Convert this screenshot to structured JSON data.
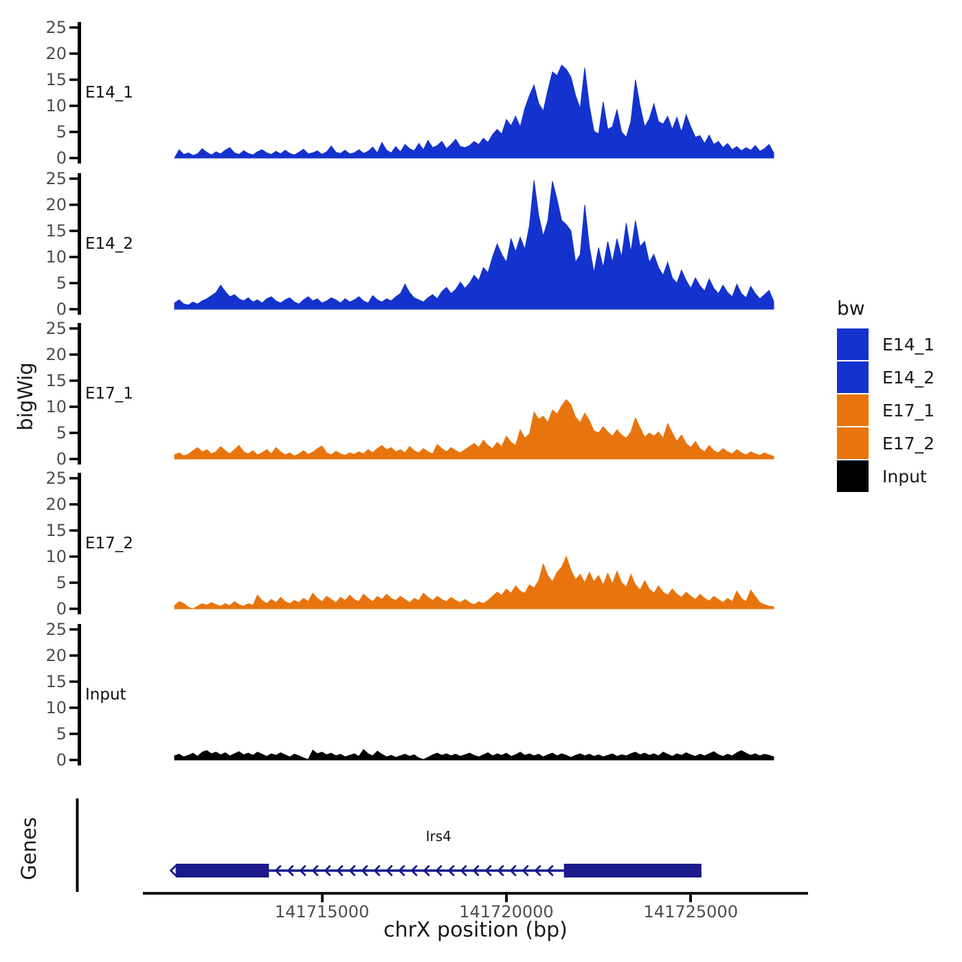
{
  "figure": {
    "ylabel_tracks": "bigWig",
    "ylabel_genes": "Genes",
    "xlabel": "chrX position (bp)",
    "background": "#FFFFFF",
    "axis_color": "#000000",
    "tick_label_color": "#4D4D4D"
  },
  "legend": {
    "title": "bw",
    "items": [
      {
        "label": "E14_1",
        "color": "#1433CE"
      },
      {
        "label": "E14_2",
        "color": "#1433CE"
      },
      {
        "label": "E17_1",
        "color": "#E8740E"
      },
      {
        "label": "E17_2",
        "color": "#E8740E"
      },
      {
        "label": "Input",
        "color": "#000000"
      }
    ]
  },
  "chart_data": {
    "type": "area",
    "title": "",
    "xlabel": "chrX position (bp)",
    "ylabel": "bigWig",
    "legend_title": "bw",
    "legend_position": "right",
    "grid": false,
    "x_domain": [
      141711000,
      141727250
    ],
    "x_step_bp": 125,
    "n_points": 131,
    "x_ticks": [
      141715000,
      141720000,
      141725000
    ],
    "x_tick_labels": [
      "141715000",
      "141720000",
      "141725000"
    ],
    "y_ticks": [
      0,
      5,
      10,
      15,
      20,
      25
    ],
    "ylim": [
      0,
      26.5
    ],
    "series": [
      {
        "name": "E14_1",
        "color": "#1433CE",
        "values": [
          0,
          1.6,
          0.7,
          1.0,
          0.5,
          0.8,
          1.8,
          1.1,
          0.6,
          1.2,
          0.8,
          1.5,
          2.0,
          1.0,
          0.7,
          1.4,
          0.9,
          0.6,
          1.2,
          1.6,
          1.0,
          0.7,
          1.3,
          0.8,
          1.5,
          0.9,
          0.6,
          1.1,
          1.7,
          0.8,
          1.0,
          1.4,
          0.7,
          1.2,
          2.3,
          1.1,
          0.9,
          1.5,
          0.8,
          1.0,
          1.6,
          0.9,
          1.3,
          2.1,
          1.0,
          3.0,
          1.5,
          1.0,
          2.2,
          1.2,
          2.6,
          1.8,
          1.4,
          2.8,
          1.6,
          3.4,
          2.0,
          2.4,
          3.2,
          1.8,
          2.6,
          3.6,
          2.2,
          2.0,
          2.4,
          3.2,
          2.6,
          3.8,
          3.0,
          4.5,
          5.5,
          4.6,
          7.4,
          6.2,
          8.0,
          6.0,
          9.5,
          12.0,
          14.0,
          10.5,
          9.0,
          13.0,
          16.5,
          15.8,
          17.8,
          17.0,
          15.5,
          12.0,
          9.5,
          17.3,
          10.0,
          5.2,
          4.6,
          10.8,
          5.5,
          6.0,
          9.3,
          5.0,
          4.0,
          7.0,
          15.0,
          10.0,
          6.0,
          7.5,
          10.4,
          7.0,
          6.5,
          8.0,
          5.5,
          7.8,
          5.0,
          8.3,
          6.0,
          4.0,
          4.3,
          2.8,
          4.4,
          2.6,
          3.2,
          2.0,
          2.8,
          1.6,
          2.2,
          1.4,
          2.0,
          1.5,
          2.4,
          1.3,
          1.8,
          2.6,
          1.0
        ]
      },
      {
        "name": "E14_2",
        "color": "#1433CE",
        "values": [
          1.2,
          1.8,
          1.0,
          0.8,
          1.4,
          1.0,
          1.6,
          2.0,
          2.6,
          3.2,
          4.6,
          3.4,
          2.4,
          2.8,
          2.0,
          1.6,
          2.2,
          1.4,
          1.8,
          1.2,
          2.0,
          2.4,
          1.6,
          1.2,
          1.8,
          2.2,
          1.4,
          1.0,
          1.8,
          2.4,
          1.6,
          2.0,
          1.2,
          1.6,
          2.2,
          1.8,
          1.2,
          2.0,
          1.4,
          1.8,
          2.4,
          1.6,
          1.2,
          2.6,
          1.8,
          1.4,
          2.0,
          1.6,
          2.4,
          3.0,
          4.8,
          3.2,
          2.2,
          1.8,
          1.4,
          2.2,
          2.8,
          2.0,
          3.4,
          4.2,
          3.0,
          3.8,
          5.2,
          4.0,
          5.0,
          6.5,
          5.5,
          8.0,
          7.0,
          10.0,
          12.5,
          10.5,
          9.0,
          13.5,
          11.0,
          13.8,
          11.5,
          16.0,
          24.7,
          18.0,
          14.0,
          17.0,
          24.5,
          21.0,
          17.0,
          16.2,
          15.0,
          9.0,
          10.5,
          20.0,
          12.0,
          7.0,
          11.8,
          8.0,
          13.0,
          9.0,
          13.5,
          10.0,
          16.5,
          11.0,
          17.0,
          12.0,
          13.0,
          9.0,
          10.5,
          8.0,
          6.5,
          9.0,
          6.0,
          5.0,
          7.5,
          5.5,
          4.0,
          6.0,
          4.5,
          3.5,
          5.8,
          4.0,
          3.0,
          4.6,
          3.2,
          2.4,
          4.8,
          3.0,
          2.2,
          4.4,
          3.0,
          2.0,
          2.8,
          3.6,
          1.5
        ]
      },
      {
        "name": "E17_1",
        "color": "#E8740E",
        "values": [
          0.8,
          1.2,
          0.6,
          0.9,
          1.6,
          2.2,
          1.4,
          1.8,
          1.0,
          1.4,
          2.4,
          1.6,
          1.0,
          1.8,
          2.6,
          1.4,
          1.0,
          1.6,
          0.8,
          1.2,
          1.8,
          1.0,
          2.2,
          1.4,
          0.8,
          1.2,
          0.6,
          1.0,
          1.6,
          0.9,
          1.3,
          2.0,
          2.5,
          1.2,
          0.8,
          1.5,
          1.0,
          0.7,
          1.2,
          0.9,
          1.4,
          1.0,
          1.8,
          1.2,
          2.0,
          2.6,
          1.8,
          2.2,
          1.4,
          1.8,
          1.2,
          2.4,
          1.6,
          1.2,
          2.0,
          1.4,
          1.0,
          2.8,
          2.0,
          1.4,
          2.2,
          1.6,
          1.2,
          1.8,
          2.4,
          3.0,
          2.2,
          3.6,
          2.6,
          2.0,
          3.2,
          2.4,
          4.4,
          3.2,
          2.6,
          5.6,
          4.0,
          4.8,
          9.0,
          7.6,
          8.2,
          7.0,
          9.4,
          8.6,
          10.2,
          11.4,
          10.4,
          8.0,
          7.0,
          8.8,
          7.4,
          5.4,
          5.0,
          6.2,
          5.2,
          4.4,
          5.6,
          4.6,
          4.0,
          5.2,
          7.9,
          6.0,
          4.2,
          5.0,
          4.4,
          5.2,
          4.0,
          6.8,
          5.0,
          3.4,
          4.6,
          3.0,
          2.2,
          3.4,
          2.0,
          1.4,
          2.6,
          1.6,
          1.2,
          2.0,
          1.4,
          1.0,
          1.8,
          1.2,
          0.8,
          1.4,
          1.0,
          0.7,
          1.2,
          0.8,
          0.5
        ]
      },
      {
        "name": "E17_2",
        "color": "#E8740E",
        "values": [
          0.6,
          1.4,
          1.0,
          0.3,
          0.0,
          0.5,
          1.0,
          0.7,
          1.2,
          0.8,
          0.5,
          1.0,
          0.6,
          1.4,
          0.8,
          0.5,
          1.0,
          0.7,
          2.6,
          1.6,
          1.0,
          1.8,
          1.2,
          2.2,
          1.4,
          1.0,
          1.6,
          1.2,
          2.0,
          1.4,
          3.0,
          2.0,
          1.4,
          2.4,
          1.8,
          1.2,
          2.2,
          1.6,
          2.6,
          1.8,
          1.4,
          2.8,
          2.0,
          1.4,
          2.4,
          1.8,
          2.8,
          2.0,
          1.6,
          2.4,
          1.8,
          1.2,
          2.0,
          1.6,
          3.0,
          2.2,
          1.6,
          2.4,
          1.8,
          1.4,
          2.2,
          1.6,
          1.2,
          1.8,
          1.2,
          0.8,
          1.4,
          1.0,
          1.6,
          2.4,
          3.2,
          2.6,
          3.8,
          3.0,
          4.4,
          3.4,
          3.0,
          4.6,
          4.0,
          5.4,
          8.6,
          6.4,
          5.2,
          7.0,
          8.0,
          10.0,
          7.4,
          5.6,
          6.6,
          5.0,
          7.0,
          5.2,
          6.4,
          4.6,
          6.8,
          4.8,
          7.2,
          5.0,
          4.2,
          6.6,
          4.6,
          3.6,
          5.4,
          3.8,
          3.0,
          4.4,
          3.2,
          2.6,
          3.8,
          2.8,
          2.2,
          3.2,
          2.4,
          1.8,
          2.8,
          2.0,
          1.5,
          2.4,
          1.8,
          1.2,
          2.0,
          1.4,
          3.4,
          2.0,
          1.4,
          3.6,
          2.4,
          1.2,
          0.8,
          0.5,
          0.4
        ]
      },
      {
        "name": "Input",
        "color": "#000000",
        "values": [
          0.8,
          1.1,
          0.6,
          0.9,
          1.3,
          0.7,
          1.5,
          1.8,
          1.2,
          1.5,
          1.0,
          1.4,
          0.8,
          1.2,
          1.6,
          1.0,
          1.3,
          0.9,
          1.5,
          1.1,
          0.7,
          1.2,
          0.9,
          1.4,
          1.0,
          0.6,
          1.1,
          0.8,
          0.4,
          0.1,
          1.9,
          1.2,
          1.5,
          1.0,
          1.3,
          0.8,
          1.1,
          0.6,
          0.9,
          1.2,
          0.7,
          2.0,
          1.2,
          0.8,
          1.7,
          1.1,
          0.6,
          0.9,
          0.5,
          0.8,
          1.1,
          0.7,
          1.0,
          0.4,
          0.1,
          0.5,
          1.0,
          1.3,
          0.9,
          1.2,
          0.8,
          1.1,
          0.7,
          1.0,
          1.3,
          0.9,
          0.6,
          1.0,
          1.4,
          0.8,
          1.2,
          0.9,
          1.3,
          0.7,
          1.0,
          1.5,
          0.9,
          1.2,
          0.8,
          1.1,
          0.6,
          1.0,
          1.3,
          0.8,
          1.2,
          0.9,
          0.5,
          0.9,
          1.2,
          0.8,
          1.1,
          0.7,
          1.0,
          0.6,
          0.9,
          1.2,
          0.7,
          1.0,
          0.8,
          1.2,
          1.5,
          1.0,
          1.3,
          0.9,
          1.2,
          0.8,
          1.5,
          1.1,
          0.7,
          1.2,
          0.9,
          1.4,
          1.0,
          0.7,
          1.1,
          0.8,
          1.2,
          1.6,
          1.0,
          0.7,
          1.1,
          0.8,
          1.4,
          1.8,
          1.3,
          0.9,
          1.2,
          0.8,
          1.1,
          0.9,
          0.6
        ]
      }
    ],
    "gene_track": {
      "label": "Genes",
      "gene": {
        "name": "Irs4",
        "chromosome": "chrX",
        "strand": "-",
        "color": "#1A1A8C",
        "exon_boxes_bp": [
          [
            141711030,
            141713560
          ],
          [
            141721560,
            141725290
          ]
        ],
        "intron_line_bp": [
          141713560,
          141721560
        ]
      }
    }
  }
}
